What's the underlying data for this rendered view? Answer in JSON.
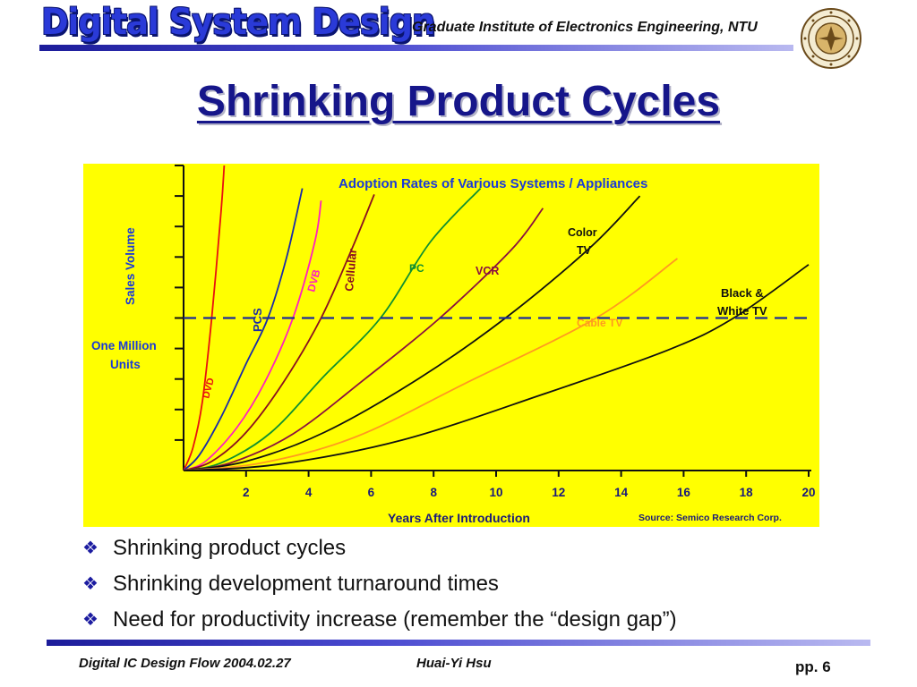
{
  "header": {
    "logo_text": "Digital System Design",
    "institute": "Graduate Institute of Electronics Engineering, NTU"
  },
  "slide": {
    "title": "Shrinking Product Cycles",
    "bullets": [
      "Shrinking product cycles",
      "Shrinking development turnaround times",
      "Need for productivity increase (remember the “design gap”)"
    ]
  },
  "footer": {
    "left": "Digital IC Design Flow 2004.02.27",
    "center": "Huai-Yi Hsu",
    "page": "pp. 6"
  },
  "colors": {
    "chart_background": "#ffff00",
    "title_blue": "#16168a",
    "chart_title_blue": "#1a3ad8"
  },
  "chart_data": {
    "type": "line",
    "title": "Adoption Rates of Various Systems / Appliances",
    "xlabel": "Years After Introduction",
    "ylabel": "Sales Volume",
    "source": "Source: Semico Research Corp.",
    "xlim": [
      0,
      20
    ],
    "xticks": [
      2,
      4,
      6,
      8,
      10,
      12,
      14,
      16,
      18,
      20
    ],
    "reference_line": {
      "label": "One Million Units",
      "y": 1.0,
      "style": "dashed",
      "color": "#1a2a9a"
    },
    "ylim": [
      0,
      2.0
    ],
    "series": [
      {
        "name": "DVD",
        "color": "#e81010",
        "points": [
          [
            0,
            0
          ],
          [
            0.3,
            0.15
          ],
          [
            0.6,
            0.45
          ],
          [
            0.9,
            1.0
          ],
          [
            1.2,
            1.7
          ],
          [
            1.3,
            2.0
          ]
        ]
      },
      {
        "name": "PCS",
        "color": "#1a2aa8",
        "points": [
          [
            0,
            0
          ],
          [
            0.5,
            0.1
          ],
          [
            1.2,
            0.35
          ],
          [
            2,
            0.7
          ],
          [
            2.7,
            1.0
          ],
          [
            3.3,
            1.4
          ],
          [
            3.8,
            1.85
          ]
        ]
      },
      {
        "name": "DVB",
        "color": "#ff20c0",
        "points": [
          [
            0,
            0
          ],
          [
            0.7,
            0.06
          ],
          [
            1.7,
            0.28
          ],
          [
            2.6,
            0.58
          ],
          [
            3.5,
            1.0
          ],
          [
            4.2,
            1.5
          ],
          [
            4.4,
            1.77
          ]
        ]
      },
      {
        "name": "Cellular",
        "color": "#8a1020",
        "points": [
          [
            0,
            0
          ],
          [
            0.9,
            0.06
          ],
          [
            2,
            0.25
          ],
          [
            3.2,
            0.58
          ],
          [
            4.4,
            1.0
          ],
          [
            5.4,
            1.46
          ],
          [
            6.1,
            1.81
          ]
        ]
      },
      {
        "name": "PC",
        "color": "#109030",
        "points": [
          [
            0,
            0
          ],
          [
            1.2,
            0.05
          ],
          [
            2.8,
            0.25
          ],
          [
            4.5,
            0.62
          ],
          [
            6.3,
            1.0
          ],
          [
            7.9,
            1.5
          ],
          [
            9.5,
            1.85
          ]
        ]
      },
      {
        "name": "VCR",
        "color": "#8a1040",
        "points": [
          [
            0,
            0
          ],
          [
            1.5,
            0.05
          ],
          [
            3.5,
            0.24
          ],
          [
            5.8,
            0.6
          ],
          [
            8.2,
            1.0
          ],
          [
            10.5,
            1.45
          ],
          [
            11.5,
            1.72
          ]
        ]
      },
      {
        "name": "Color TV",
        "color": "#101010",
        "points": [
          [
            0,
            0
          ],
          [
            2,
            0.06
          ],
          [
            4.5,
            0.25
          ],
          [
            7.5,
            0.6
          ],
          [
            10.3,
            1.0
          ],
          [
            13,
            1.46
          ],
          [
            14.6,
            1.8
          ]
        ]
      },
      {
        "name": "Cable TV",
        "color": "#ff9a20",
        "points": [
          [
            0,
            0
          ],
          [
            2.5,
            0.05
          ],
          [
            5.5,
            0.22
          ],
          [
            9,
            0.57
          ],
          [
            13.2,
            1.0
          ],
          [
            15.8,
            1.39
          ]
        ]
      },
      {
        "name": "Black & White TV",
        "color": "#101010",
        "points": [
          [
            0,
            0
          ],
          [
            3,
            0.04
          ],
          [
            7,
            0.2
          ],
          [
            11.5,
            0.5
          ],
          [
            15.5,
            0.79
          ],
          [
            17.6,
            1.0
          ],
          [
            20,
            1.35
          ]
        ]
      }
    ],
    "labels": {
      "dvd": "DVD",
      "pcs": "PCS",
      "dvb": "DVB",
      "cellular": "Cellular",
      "pc": "PC",
      "vcr": "VCR",
      "color_tv_1": "Color",
      "color_tv_2": "TV",
      "cable_tv": "Cable TV",
      "bw_tv_1": "Black &",
      "bw_tv_2": "White TV",
      "ref_1": "One Million",
      "ref_2": "Units"
    }
  }
}
